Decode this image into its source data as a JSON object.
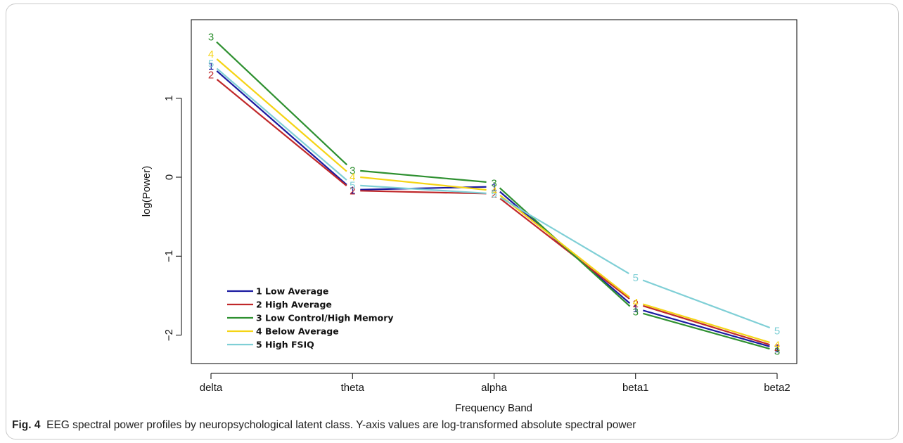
{
  "chart_data": {
    "type": "line",
    "xlabel": "Frequency Band",
    "ylabel": "log(Power)",
    "categories": [
      "delta",
      "theta",
      "alpha",
      "beta1",
      "beta2"
    ],
    "yticks": [
      -2,
      -1,
      0,
      1
    ],
    "ytick_labels": [
      "−2",
      "−1",
      "0",
      "1"
    ],
    "ylim": [
      -2.35,
      2.05
    ],
    "grid": false,
    "legend_position": "bottom-left",
    "series": [
      {
        "marker": "1",
        "name": "1 Low Average",
        "color": "#1a1aa0",
        "values": [
          1.41,
          -0.16,
          -0.12,
          -1.66,
          -2.17
        ]
      },
      {
        "marker": "2",
        "name": "2 High Average",
        "color": "#c0282a",
        "values": [
          1.3,
          -0.17,
          -0.21,
          -1.6,
          -2.15
        ]
      },
      {
        "marker": "3",
        "name": "3 Low Control/High Memory",
        "color": "#2e9030",
        "values": [
          1.78,
          0.09,
          -0.07,
          -1.7,
          -2.2
        ]
      },
      {
        "marker": "4",
        "name": "4 Below Average",
        "color": "#f5d415",
        "values": [
          1.56,
          0.01,
          -0.17,
          -1.58,
          -2.12
        ]
      },
      {
        "marker": "5",
        "name": "5 High FSIQ",
        "color": "#7fcfd6",
        "values": [
          1.44,
          -0.1,
          -0.21,
          -1.27,
          -1.94
        ]
      }
    ]
  },
  "caption": {
    "label": "Fig. 4",
    "text": "EEG spectral power profiles by neuropsychological latent class. Y-axis values are log-transformed absolute spectral power"
  }
}
